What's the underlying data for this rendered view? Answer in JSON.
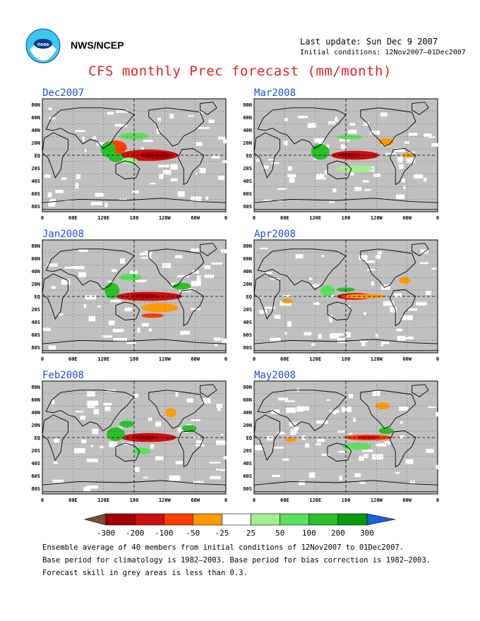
{
  "header": {
    "organization": "NWS/NCEP",
    "last_update": "Last update: Sun Dec 9 2007",
    "initial_conditions": "Initial conditions: 12Nov2007–01Dec2007"
  },
  "title": "CFS monthly Prec forecast (mm/month)",
  "map_axes": {
    "lat_labels": [
      "80N",
      "60N",
      "40N",
      "20N",
      "20N",
      "EQ",
      "20S",
      "40S",
      "60S",
      "80S"
    ],
    "lat_labels_used": [
      "80N",
      "60N",
      "40N",
      "20N",
      "EQ",
      "20S",
      "40S",
      "60S",
      "80S"
    ],
    "lon_labels": [
      "0",
      "60E",
      "120E",
      "180",
      "120W",
      "60W",
      "0"
    ]
  },
  "panels": [
    {
      "id": "dec2007",
      "label": "Dec2007"
    },
    {
      "id": "mar2008",
      "label": "Mar2008"
    },
    {
      "id": "jan2008",
      "label": "Jan2008"
    },
    {
      "id": "apr2008",
      "label": "Apr2008"
    },
    {
      "id": "feb2008",
      "label": "Feb2008"
    },
    {
      "id": "may2008",
      "label": "May2008"
    }
  ],
  "legend": {
    "labels": [
      "-300",
      "-200",
      "-100",
      "-50",
      "-25",
      "25",
      "50",
      "100",
      "200",
      "300"
    ],
    "colors": [
      "#7a4a3a",
      "#a50000",
      "#cc1010",
      "#ff3c00",
      "#ff9a00",
      "#ffffff",
      "#a0f090",
      "#5ae05a",
      "#2ac02a",
      "#0a9a0a",
      "#1a60e0"
    ]
  },
  "footnotes": [
    "Ensemble average of 40 members from initial conditions of 12Nov2007 to 01Dec2007.",
    "Base period for climatology is 1982–2003. Base period for bias correction is 1982–2003.",
    "Forecast skill in grey areas is less than 0.3."
  ],
  "colors": {
    "map_bg": "#c0c0c0",
    "title_red": "#e8201c",
    "panel_title_blue": "#1c4ed8",
    "anomaly_dry": "#cc1010",
    "anomaly_wet": "#2ac02a"
  }
}
